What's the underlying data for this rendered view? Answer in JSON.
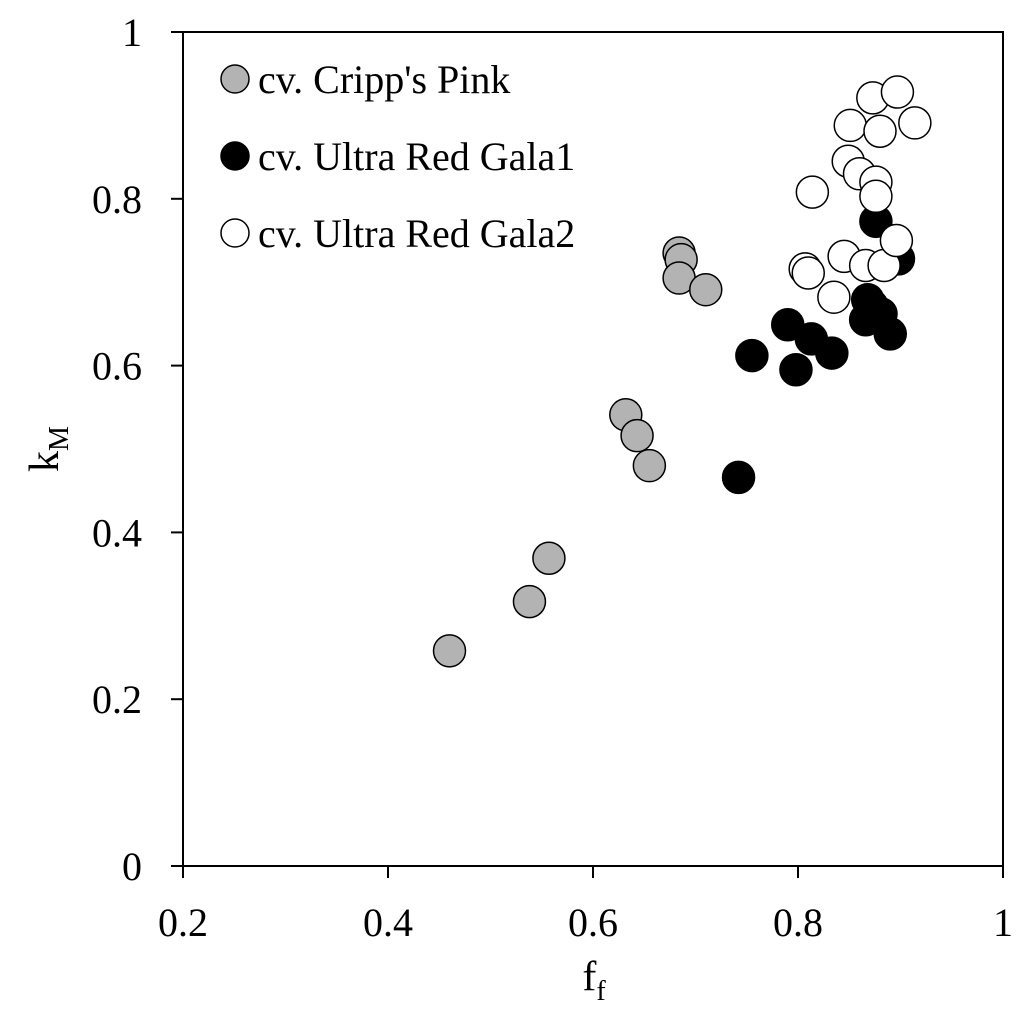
{
  "chart_data": {
    "type": "scatter",
    "xlabel": {
      "main": "f",
      "sub": "f"
    },
    "ylabel": {
      "main": "k",
      "sub": "M"
    },
    "xlim": [
      0.2,
      1
    ],
    "ylim": [
      0,
      1
    ],
    "x_ticks": [
      "0.2",
      "0.4",
      "0.6",
      "0.8",
      "1"
    ],
    "y_ticks": [
      "0",
      "0.2",
      "0.4",
      "0.6",
      "0.8",
      "1"
    ],
    "x_tick_values": [
      0.2,
      0.4,
      0.6,
      0.8,
      1.0
    ],
    "y_tick_values": [
      0.0,
      0.2,
      0.4,
      0.6,
      0.8,
      1.0
    ],
    "grid": false,
    "legend_position": "top-left",
    "series": [
      {
        "name": "cv. Cripp's Pink",
        "fill": "#b3b3b3",
        "points": [
          [
            0.46,
            0.258
          ],
          [
            0.538,
            0.317
          ],
          [
            0.557,
            0.369
          ],
          [
            0.632,
            0.541
          ],
          [
            0.643,
            0.516
          ],
          [
            0.655,
            0.48
          ],
          [
            0.684,
            0.735
          ],
          [
            0.686,
            0.727
          ],
          [
            0.684,
            0.705
          ],
          [
            0.71,
            0.691
          ]
        ]
      },
      {
        "name": "cv. Ultra Red Gala1",
        "fill": "#000000",
        "points": [
          [
            0.742,
            0.466
          ],
          [
            0.755,
            0.612
          ],
          [
            0.79,
            0.649
          ],
          [
            0.798,
            0.595
          ],
          [
            0.813,
            0.632
          ],
          [
            0.833,
            0.615
          ],
          [
            0.868,
            0.679
          ],
          [
            0.866,
            0.655
          ],
          [
            0.876,
            0.773
          ],
          [
            0.881,
            0.662
          ],
          [
            0.89,
            0.638
          ],
          [
            0.898,
            0.728
          ],
          [
            0.872,
            0.672
          ]
        ]
      },
      {
        "name": "cv. Ultra Red Gala2",
        "fill": "#ffffff",
        "points": [
          [
            0.807,
            0.716
          ],
          [
            0.81,
            0.711
          ],
          [
            0.814,
            0.808
          ],
          [
            0.835,
            0.682
          ],
          [
            0.845,
            0.731
          ],
          [
            0.849,
            0.845
          ],
          [
            0.851,
            0.888
          ],
          [
            0.86,
            0.83
          ],
          [
            0.866,
            0.72
          ],
          [
            0.873,
            0.921
          ],
          [
            0.876,
            0.82
          ],
          [
            0.876,
            0.803
          ],
          [
            0.88,
            0.881
          ],
          [
            0.884,
            0.72
          ],
          [
            0.896,
            0.75
          ],
          [
            0.897,
            0.928
          ],
          [
            0.914,
            0.891
          ]
        ]
      }
    ]
  }
}
